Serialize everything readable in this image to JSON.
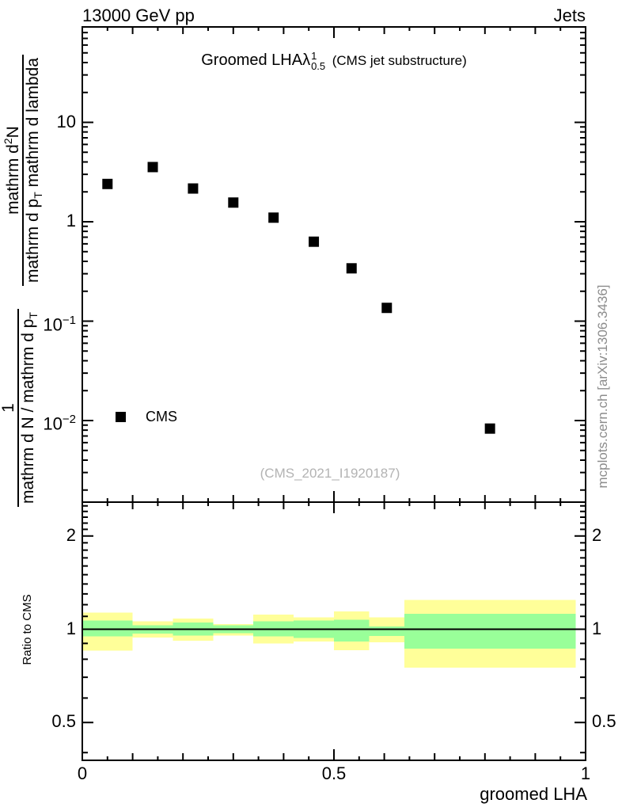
{
  "header": {
    "left": "13000 GeV pp",
    "right": "Jets"
  },
  "title": {
    "prefix": "Groomed LHA",
    "lambda": "λ",
    "sup": "1",
    "sub": "0.5",
    "suffix": "(CMS jet substructure)"
  },
  "legend": {
    "label": "CMS",
    "marker": "filled-square",
    "marker_color": "#000000"
  },
  "watermark": "(CMS_2021_I1920187)",
  "side_note": "mcplots.cern.ch [arXiv:1306.3436]",
  "ylabel": {
    "top_fraction": {
      "num_prefix": "mathrm d",
      "num_sup": "2",
      "num_suffix": "N",
      "den_p1": "mathrm d p",
      "den_sub": "T",
      "den_p2": " mathrm d lambda"
    },
    "bottom_fraction": {
      "num": "1",
      "den_p1": "mathrm d N / mathrm d p",
      "den_sub": "T"
    }
  },
  "colors": {
    "marker": "#000000",
    "frame": "#000000",
    "band_outer": "#ffff99",
    "band_inner": "#99ff99",
    "gray_text": "#8c8c8c",
    "watermark_gray": "#b3b3b3"
  },
  "chart_data": {
    "type": "scatter",
    "title": "Groomed LHA lambda^1_0.5 (CMS jet substructure)",
    "xlabel": "groomed LHA",
    "ylabel": "1/(dN/dp_T) d^2N/(dp_T d lambda)",
    "xlim": [
      0,
      1
    ],
    "x_minor_step": 0.05,
    "x_medium_step": 0.1,
    "xticks": [
      {
        "v": 0,
        "t": "0"
      },
      {
        "v": 0.5,
        "t": "0.5"
      },
      {
        "v": 1,
        "t": "1"
      }
    ],
    "main_panel": {
      "yscale": "log10",
      "ylim": [
        0.0015,
        90
      ],
      "yticks": [
        {
          "v": 10,
          "base": "10",
          "exp": ""
        },
        {
          "v": 1,
          "base": "1",
          "exp": ""
        },
        {
          "v": 0.1,
          "base": "10",
          "exp": "−1"
        },
        {
          "v": 0.01,
          "base": "10",
          "exp": "−2"
        }
      ],
      "series": [
        {
          "name": "CMS",
          "marker": "filled-square",
          "color": "#000000",
          "x": [
            0.05,
            0.14,
            0.22,
            0.3,
            0.38,
            0.46,
            0.535,
            0.605,
            0.81
          ],
          "y": [
            2.4,
            3.55,
            2.16,
            1.56,
            1.1,
            0.63,
            0.34,
            0.136,
            0.0083
          ]
        }
      ]
    },
    "ratio_panel": {
      "ylabel": "Ratio to CMS",
      "yscale": "log2",
      "ylim": [
        0.376,
        2.57
      ],
      "yticks": [
        {
          "v": 2,
          "t": "2"
        },
        {
          "v": 1,
          "t": "1"
        },
        {
          "v": 0.5,
          "t": "0.5"
        }
      ],
      "minor_yticks": [
        0.4,
        0.6,
        0.7,
        0.8,
        0.9,
        1.1,
        1.2,
        1.3,
        1.4,
        1.5,
        1.6,
        1.7,
        1.8,
        1.9,
        2.1,
        2.2,
        2.3,
        2.4,
        2.5
      ],
      "reference_line": 1,
      "bin_edges": [
        0,
        0.1,
        0.18,
        0.26,
        0.34,
        0.42,
        0.5,
        0.57,
        0.64,
        0.98
      ],
      "outer_band": [
        [
          0.853,
          1.13
        ],
        [
          0.94,
          1.062
        ],
        [
          0.917,
          1.082
        ],
        [
          0.955,
          1.04
        ],
        [
          0.899,
          1.114
        ],
        [
          0.913,
          1.091
        ],
        [
          0.856,
          1.14
        ],
        [
          0.908,
          1.091
        ],
        [
          0.752,
          1.244
        ]
      ],
      "inner_band": [
        [
          0.949,
          1.066
        ],
        [
          0.967,
          1.03
        ],
        [
          0.955,
          1.05
        ],
        [
          0.97,
          1.03
        ],
        [
          0.949,
          1.062
        ],
        [
          0.936,
          1.066
        ],
        [
          0.913,
          1.072
        ],
        [
          0.95,
          1.02
        ],
        [
          0.866,
          1.123
        ]
      ]
    }
  }
}
